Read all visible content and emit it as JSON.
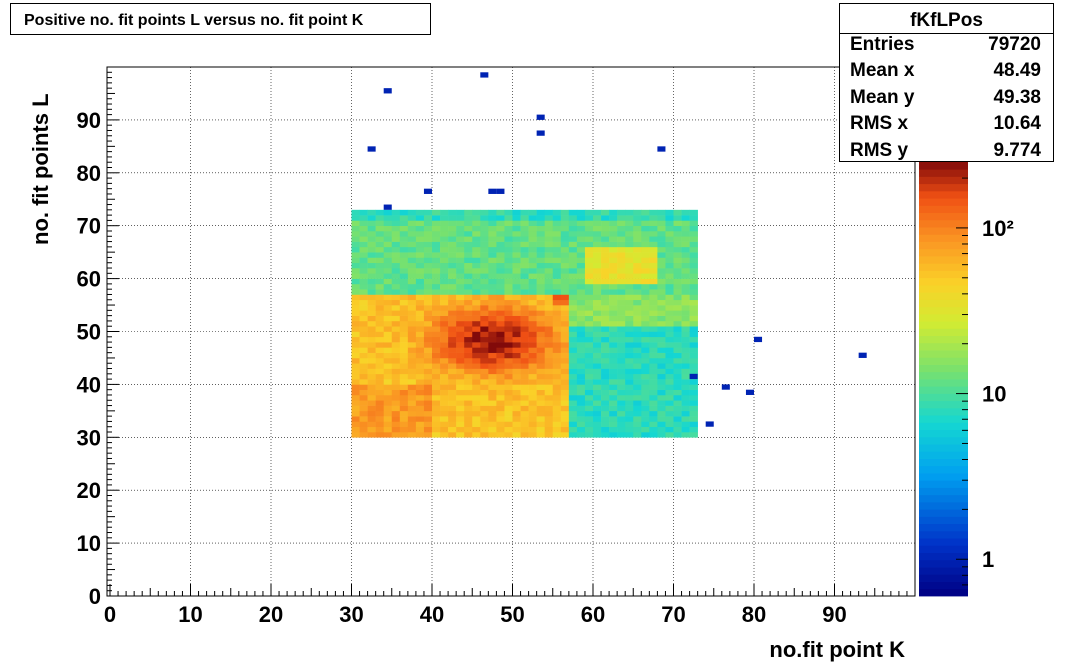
{
  "chart_data": {
    "type": "heatmap",
    "title": "Positive no. fit points L versus no. fit point K",
    "xlabel": "no.fit point K",
    "ylabel": "no. fit points  L",
    "xlim": [
      0,
      100
    ],
    "ylim": [
      0,
      100
    ],
    "x_ticks": [
      "0",
      "10",
      "20",
      "30",
      "40",
      "50",
      "60",
      "70",
      "80",
      "90"
    ],
    "y_ticks": [
      "0",
      "10",
      "20",
      "30",
      "40",
      "50",
      "60",
      "70",
      "80",
      "90"
    ],
    "grid": true,
    "z_scale": "log",
    "z_range": [
      0.6,
      250
    ],
    "colorbar_labels": [
      "1",
      "10",
      "10²"
    ],
    "main_block": {
      "k_range": [
        30,
        73
      ],
      "l_range": [
        30,
        73
      ],
      "description_levels": {
        "lower_left_band": 55,
        "hot_spot_center_k": 47,
        "hot_spot_center_l": 48,
        "hot_spot_peak": 190,
        "upper_band": 12,
        "right_band": 8
      }
    },
    "isolated_points": [
      {
        "k": 46,
        "l": 98,
        "count": 1
      },
      {
        "k": 34,
        "l": 95,
        "count": 1
      },
      {
        "k": 53,
        "l": 90,
        "count": 1
      },
      {
        "k": 53,
        "l": 87,
        "count": 1
      },
      {
        "k": 32,
        "l": 84,
        "count": 1
      },
      {
        "k": 68,
        "l": 84,
        "count": 1
      },
      {
        "k": 39,
        "l": 76,
        "count": 1
      },
      {
        "k": 47,
        "l": 76,
        "count": 1
      },
      {
        "k": 48,
        "l": 76,
        "count": 1
      },
      {
        "k": 34,
        "l": 73,
        "count": 1
      },
      {
        "k": 80,
        "l": 48,
        "count": 1
      },
      {
        "k": 93,
        "l": 45,
        "count": 1
      },
      {
        "k": 72,
        "l": 41,
        "count": 1
      },
      {
        "k": 76,
        "l": 39,
        "count": 1
      },
      {
        "k": 79,
        "l": 38,
        "count": 1
      },
      {
        "k": 74,
        "l": 32,
        "count": 1
      }
    ]
  },
  "stats": {
    "name": "fKfLPos",
    "rows": [
      {
        "label": "Entries",
        "value": "79720"
      },
      {
        "label": "Mean x",
        "value": "48.49"
      },
      {
        "label": "Mean y",
        "value": "49.38"
      },
      {
        "label": "RMS x",
        "value": "10.64"
      },
      {
        "label": "RMS y",
        "value": "9.774"
      }
    ]
  }
}
